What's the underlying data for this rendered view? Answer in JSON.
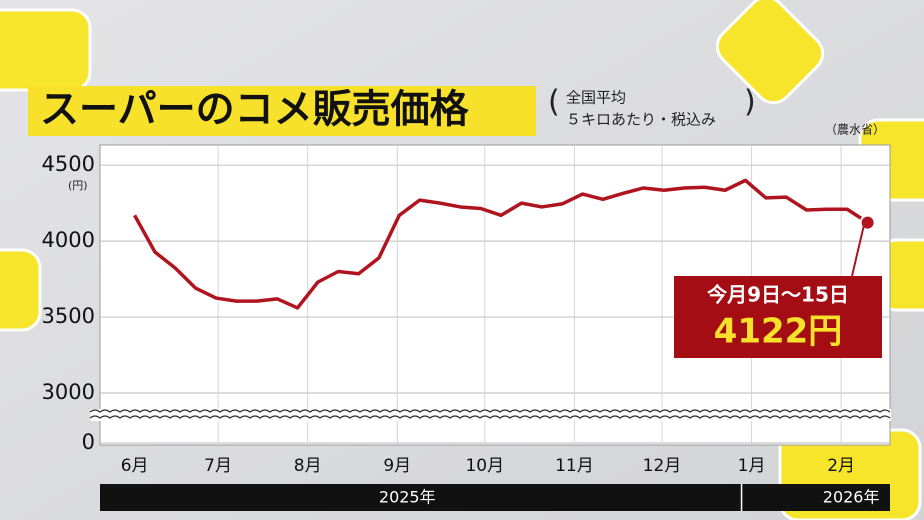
{
  "chart_data": {
    "type": "line",
    "title": "スーパーのコメ販売価格",
    "subtitle": [
      "全国平均",
      "５キロあたり・税込み"
    ],
    "source": "（農水省）",
    "y_unit": "(円)",
    "series": [
      {
        "name": "コメ販売価格",
        "color": "#b0141e",
        "values": [
          4170,
          3928,
          3822,
          3690,
          3625,
          3605,
          3605,
          3620,
          3560,
          3730,
          3800,
          3785,
          3890,
          4170,
          4270,
          4250,
          4225,
          4215,
          4170,
          4250,
          4225,
          4245,
          4310,
          4275,
          4315,
          4350,
          4335,
          4350,
          4355,
          4335,
          4400,
          4285,
          4290,
          4205,
          4210,
          4210,
          4122
        ],
        "value_labels": [
          null,
          null,
          null,
          null,
          null,
          null,
          null,
          null,
          null,
          null,
          null,
          null,
          null,
          null,
          null,
          null,
          null,
          null,
          null,
          null,
          null,
          null,
          null,
          null,
          null,
          null,
          null,
          null,
          null,
          null,
          null,
          null,
          null,
          null,
          null,
          null,
          "4122円"
        ]
      }
    ],
    "annotation": "今月9日～15日",
    "xlim": [
      -1.7,
      37.1
    ],
    "xticks": [
      {
        "value": 0,
        "label": "6月"
      },
      {
        "value": 4.1,
        "label": "7月"
      },
      {
        "value": 8.5,
        "label": "8月"
      },
      {
        "value": 12.9,
        "label": "9月"
      },
      {
        "value": 17.2,
        "label": "10月"
      },
      {
        "value": 21.6,
        "label": "11月"
      },
      {
        "value": 25.9,
        "label": "12月"
      },
      {
        "value": 30.3,
        "label": "1月"
      },
      {
        "value": 34.7,
        "label": "2月"
      }
    ],
    "years": [
      {
        "value": 12.9,
        "label": "2025年"
      },
      {
        "value": 34.7,
        "label": "2026年"
      }
    ],
    "year_split": 30.3,
    "ylim": [
      0,
      4600
    ],
    "axis_break": [
      0,
      3000
    ],
    "yticks": [
      0,
      3000,
      3500,
      4000,
      4500
    ],
    "grid": true
  }
}
